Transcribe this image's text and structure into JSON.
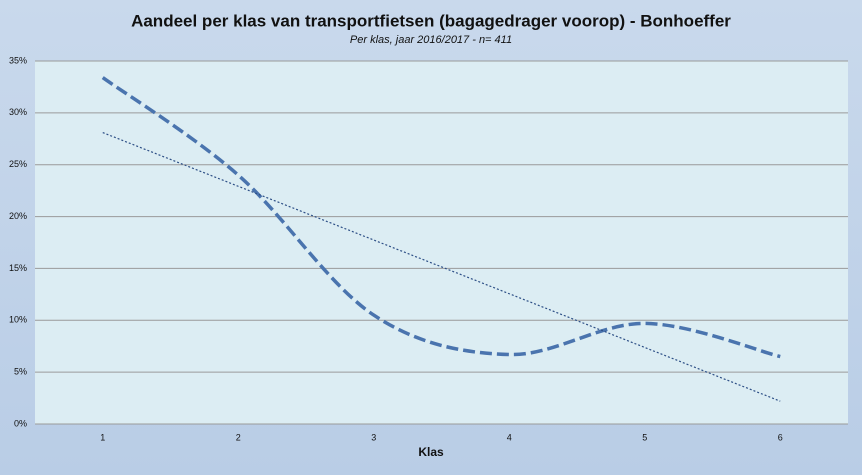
{
  "chart_data": {
    "type": "line",
    "title": "Aandeel per klas van transportfietsen (bagagedrager voorop) - Bonhoeffer",
    "subtitle": "Per klas, jaar  2016/2017 - n= 411",
    "x_label": "Klas",
    "x": [
      1,
      2,
      3,
      4,
      5,
      6
    ],
    "series": [
      {
        "color": "#4a74ae",
        "values": [
          33.4,
          24,
          10.5,
          6.7,
          9.7,
          6.5
        ],
        "smooth": true,
        "dash": "dashed"
      }
    ],
    "trendline": {
      "x": [
        1,
        6
      ],
      "values": [
        28.1,
        2.2
      ],
      "color": "#2d4f86"
    },
    "xlim": [
      0.5,
      6.5
    ],
    "xticks": [
      1,
      2,
      3,
      4,
      5,
      6
    ],
    "ylim": [
      0,
      35
    ],
    "yticks": [
      {
        "value": 0,
        "label": "0%"
      },
      {
        "value": 5,
        "label": "5%"
      },
      {
        "value": 10,
        "label": "10%"
      },
      {
        "value": 15,
        "label": "15%"
      },
      {
        "value": 20,
        "label": "20%"
      },
      {
        "value": 25,
        "label": "25%"
      },
      {
        "value": 30,
        "label": "30%"
      },
      {
        "value": 35,
        "label": "35%"
      }
    ],
    "grid": true
  }
}
